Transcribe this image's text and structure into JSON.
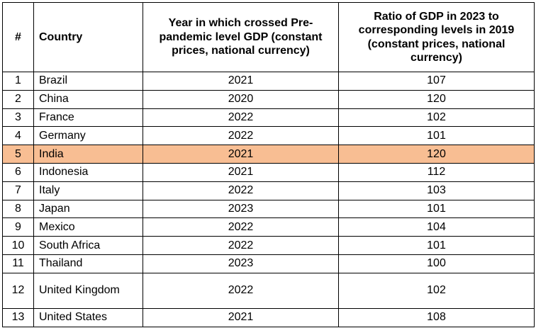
{
  "table": {
    "headers": {
      "index": "#",
      "country": "Country",
      "year": "Year in which crossed Pre-pandemic level GDP (constant prices, national currency)",
      "ratio": "Ratio of GDP in 2023 to corresponding levels in 2019 (constant prices, national currency)"
    },
    "highlight_color": "#F8BE93",
    "rows": [
      {
        "index": "1",
        "country": "Brazil",
        "year": "2021",
        "ratio": "107"
      },
      {
        "index": "2",
        "country": "China",
        "year": "2020",
        "ratio": "120"
      },
      {
        "index": "3",
        "country": "France",
        "year": "2022",
        "ratio": "102"
      },
      {
        "index": "4",
        "country": "Germany",
        "year": "2022",
        "ratio": "101"
      },
      {
        "index": "5",
        "country": "India",
        "year": "2021",
        "ratio": "120"
      },
      {
        "index": "6",
        "country": "Indonesia",
        "year": "2021",
        "ratio": "112"
      },
      {
        "index": "7",
        "country": "Italy",
        "year": "2022",
        "ratio": "103"
      },
      {
        "index": "8",
        "country": "Japan",
        "year": "2023",
        "ratio": "101"
      },
      {
        "index": "9",
        "country": "Mexico",
        "year": "2022",
        "ratio": "104"
      },
      {
        "index": "10",
        "country": "South Africa",
        "year": "2022",
        "ratio": "101"
      },
      {
        "index": "11",
        "country": "Thailand",
        "year": "2023",
        "ratio": "100"
      },
      {
        "index": "12",
        "country": "United Kingdom",
        "year": "2022",
        "ratio": "102"
      },
      {
        "index": "13",
        "country": "United States",
        "year": "2021",
        "ratio": "108"
      }
    ]
  }
}
